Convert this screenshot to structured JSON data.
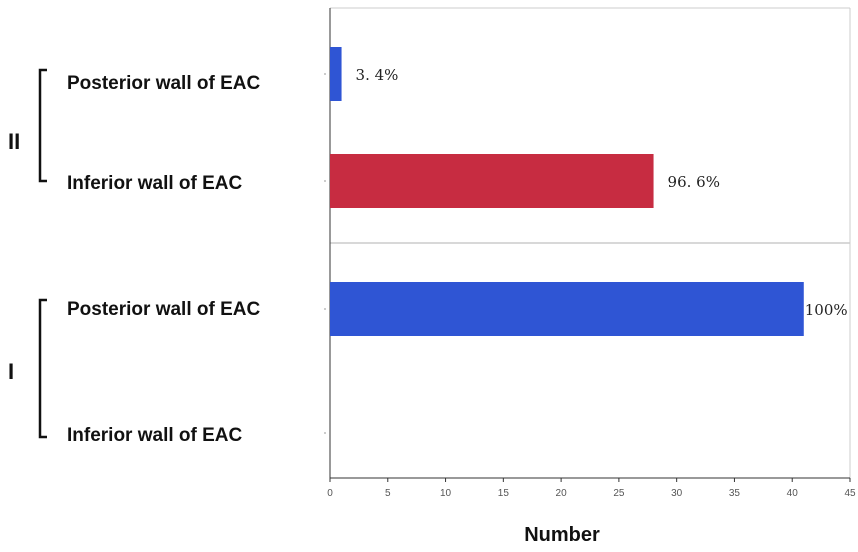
{
  "chart_data": {
    "type": "bar",
    "orientation": "horizontal",
    "xlabel": "Number",
    "xlim": [
      0,
      45
    ],
    "xticks": [
      0,
      5,
      10,
      15,
      20,
      25,
      30,
      35,
      40,
      45
    ],
    "grid": false,
    "groups": [
      {
        "name": "II",
        "bars": [
          {
            "category": "Posterior wall of EAC",
            "value": 1,
            "label": "3. 4%",
            "color": "#2f55d4"
          },
          {
            "category": "Inferior wall of EAC",
            "value": 28,
            "label": "96. 6%",
            "color": "#c72c41"
          }
        ]
      },
      {
        "name": "I",
        "bars": [
          {
            "category": "Posterior wall of EAC",
            "value": 41,
            "label": "100%",
            "color": "#2f55d4"
          },
          {
            "category": "Inferior wall of EAC",
            "value": 0,
            "label": "",
            "color": "#2f55d4"
          }
        ]
      }
    ]
  }
}
